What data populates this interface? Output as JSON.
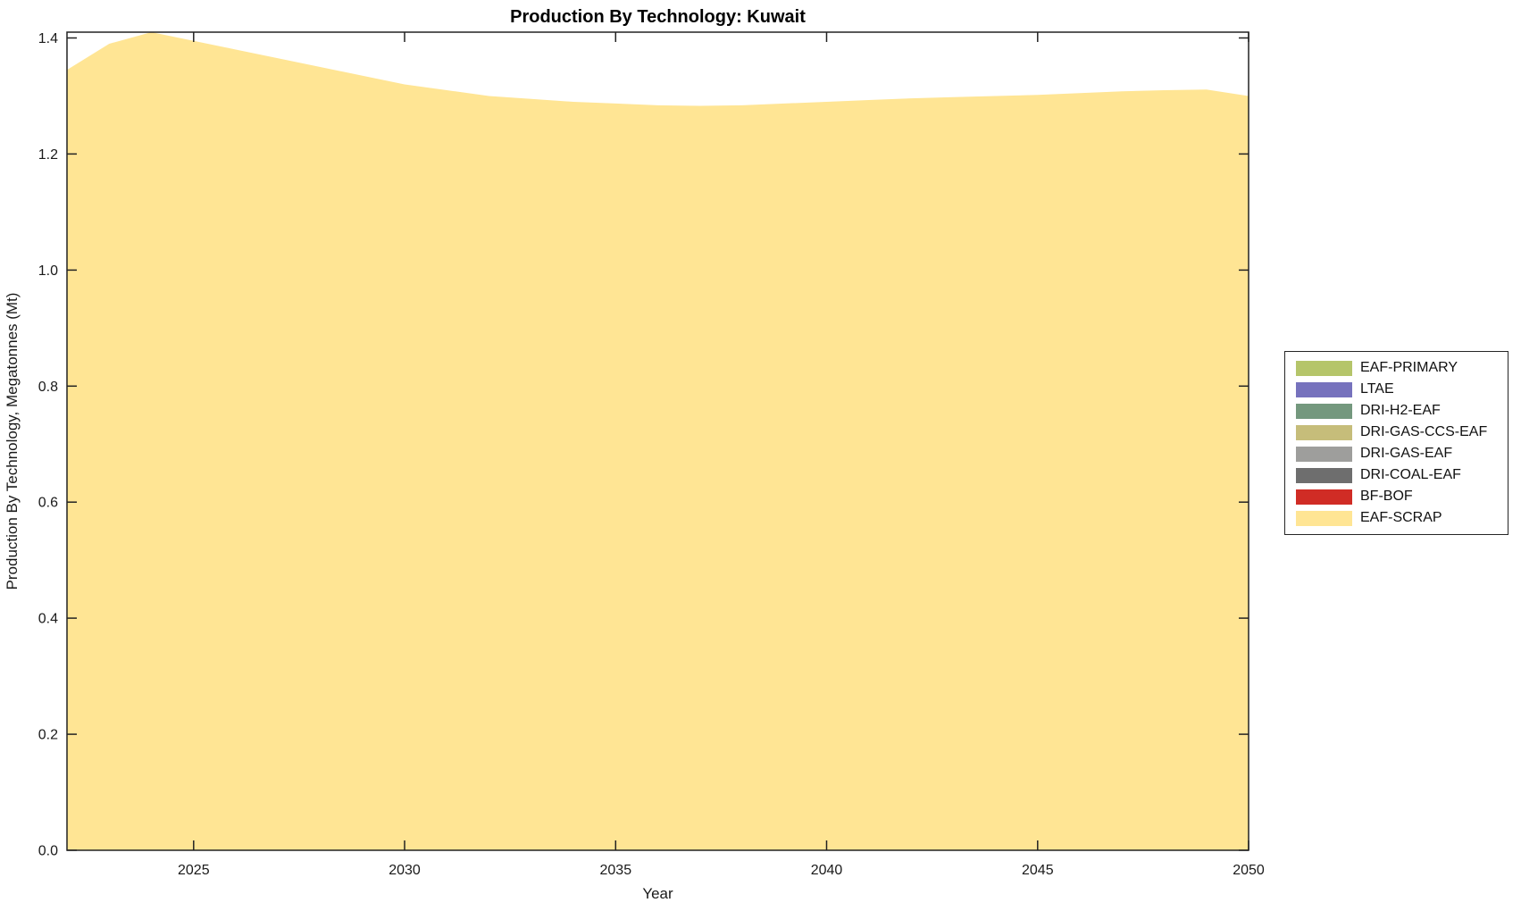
{
  "chart_data": {
    "type": "area",
    "stacked": true,
    "title": "Production By Technology: Kuwait",
    "xlabel": "Year",
    "ylabel": "Production By Technology, Megatonnes (Mt)",
    "xlim": [
      2022,
      2050
    ],
    "ylim": [
      0,
      1.41
    ],
    "xticks": [
      2025,
      2030,
      2035,
      2040,
      2045,
      2050
    ],
    "yticks": [
      0.0,
      0.2,
      0.4,
      0.6,
      0.8,
      1.0,
      1.2,
      1.4
    ],
    "grid": false,
    "legend_position": "outside-right",
    "x": [
      2022,
      2023,
      2024,
      2025,
      2026,
      2027,
      2028,
      2029,
      2030,
      2031,
      2032,
      2033,
      2034,
      2035,
      2036,
      2037,
      2038,
      2039,
      2040,
      2041,
      2042,
      2043,
      2044,
      2045,
      2046,
      2047,
      2048,
      2049,
      2050
    ],
    "series": [
      {
        "name": "EAF-PRIMARY",
        "color": "#b5c56a",
        "values": [
          0,
          0,
          0,
          0,
          0,
          0,
          0,
          0,
          0,
          0,
          0,
          0,
          0,
          0,
          0,
          0,
          0,
          0,
          0,
          0,
          0,
          0,
          0,
          0,
          0,
          0,
          0,
          0,
          0
        ]
      },
      {
        "name": "LTAE",
        "color": "#7672bd",
        "values": [
          0,
          0,
          0,
          0,
          0,
          0,
          0,
          0,
          0,
          0,
          0,
          0,
          0,
          0,
          0,
          0,
          0,
          0,
          0,
          0,
          0,
          0,
          0,
          0,
          0,
          0,
          0,
          0,
          0
        ]
      },
      {
        "name": "DRI-H2-EAF",
        "color": "#74987e",
        "values": [
          0,
          0,
          0,
          0,
          0,
          0,
          0,
          0,
          0,
          0,
          0,
          0,
          0,
          0,
          0,
          0,
          0,
          0,
          0,
          0,
          0,
          0,
          0,
          0,
          0,
          0,
          0,
          0,
          0
        ]
      },
      {
        "name": "DRI-GAS-CCS-EAF",
        "color": "#c6bd7a",
        "values": [
          0,
          0,
          0,
          0,
          0,
          0,
          0,
          0,
          0,
          0,
          0,
          0,
          0,
          0,
          0,
          0,
          0,
          0,
          0,
          0,
          0,
          0,
          0,
          0,
          0,
          0,
          0,
          0,
          0
        ]
      },
      {
        "name": "DRI-GAS-EAF",
        "color": "#9e9e9c",
        "values": [
          0,
          0,
          0,
          0,
          0,
          0,
          0,
          0,
          0,
          0,
          0,
          0,
          0,
          0,
          0,
          0,
          0,
          0,
          0,
          0,
          0,
          0,
          0,
          0,
          0,
          0,
          0,
          0,
          0
        ]
      },
      {
        "name": "DRI-COAL-EAF",
        "color": "#6e6e6e",
        "values": [
          0,
          0,
          0,
          0,
          0,
          0,
          0,
          0,
          0,
          0,
          0,
          0,
          0,
          0,
          0,
          0,
          0,
          0,
          0,
          0,
          0,
          0,
          0,
          0,
          0,
          0,
          0,
          0,
          0
        ]
      },
      {
        "name": "BF-BOF",
        "color": "#d02c25",
        "values": [
          0,
          0,
          0,
          0,
          0,
          0,
          0,
          0,
          0,
          0,
          0,
          0,
          0,
          0,
          0,
          0,
          0,
          0,
          0,
          0,
          0,
          0,
          0,
          0,
          0,
          0,
          0,
          0,
          0
        ]
      },
      {
        "name": "EAF-SCRAP",
        "color": "#ffe594",
        "values": [
          1.345,
          1.39,
          1.41,
          1.395,
          1.38,
          1.365,
          1.35,
          1.335,
          1.32,
          1.31,
          1.3,
          1.295,
          1.29,
          1.287,
          1.284,
          1.283,
          1.284,
          1.287,
          1.29,
          1.293,
          1.296,
          1.298,
          1.3,
          1.302,
          1.305,
          1.308,
          1.31,
          1.311,
          1.3
        ]
      }
    ],
    "axis_color": "#222222",
    "text_color": "#1a1a1a"
  }
}
